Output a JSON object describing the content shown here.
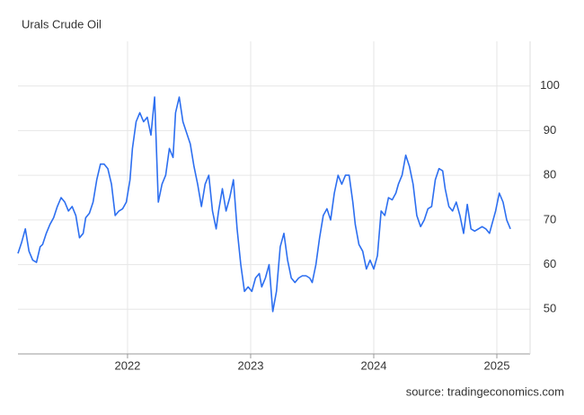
{
  "chart_data": {
    "type": "line",
    "title": "Urals Crude Oil",
    "source": "source: tradingeconomics.com",
    "x": [
      2021.11,
      2021.14,
      2021.17,
      2021.2,
      2021.23,
      2021.26,
      2021.29,
      2021.31,
      2021.34,
      2021.37,
      2021.4,
      2021.43,
      2021.46,
      2021.49,
      2021.52,
      2021.55,
      2021.58,
      2021.61,
      2021.64,
      2021.66,
      2021.69,
      2021.72,
      2021.75,
      2021.78,
      2021.81,
      2021.84,
      2021.87,
      2021.9,
      2021.93,
      2021.96,
      2021.99,
      2022.02,
      2022.04,
      2022.07,
      2022.1,
      2022.13,
      2022.16,
      2022.19,
      2022.22,
      2022.25,
      2022.28,
      2022.31,
      2022.34,
      2022.37,
      2022.39,
      2022.42,
      2022.45,
      2022.48,
      2022.51,
      2022.54,
      2022.57,
      2022.6,
      2022.63,
      2022.66,
      2022.69,
      2022.72,
      2022.74,
      2022.77,
      2022.8,
      2022.83,
      2022.86,
      2022.89,
      2022.92,
      2022.95,
      2022.98,
      2023.01,
      2023.04,
      2023.07,
      2023.09,
      2023.12,
      2023.15,
      2023.18,
      2023.21,
      2023.24,
      2023.27,
      2023.3,
      2023.33,
      2023.36,
      2023.39,
      2023.42,
      2023.45,
      2023.48,
      2023.5,
      2023.53,
      2023.56,
      2023.59,
      2023.62,
      2023.65,
      2023.68,
      2023.71,
      2023.74,
      2023.77,
      2023.8,
      2023.83,
      2023.85,
      2023.88,
      2023.91,
      2023.94,
      2023.97,
      2024.0,
      2024.03,
      2024.06,
      2024.09,
      2024.12,
      2024.15,
      2024.18,
      2024.2,
      2024.23,
      2024.26,
      2024.29,
      2024.32,
      2024.35,
      2024.38,
      2024.41,
      2024.44,
      2024.47,
      2024.5,
      2024.53,
      2024.56,
      2024.58,
      2024.61,
      2024.64,
      2024.67,
      2024.7,
      2024.73,
      2024.76,
      2024.79,
      2024.82,
      2024.85,
      2024.88,
      2024.91,
      2024.94,
      2024.96,
      2024.99,
      2025.02,
      2025.05,
      2025.08,
      2025.11
    ],
    "series": [
      {
        "color": "#2d6ff0",
        "values": [
          62.5,
          65,
          68,
          63,
          61,
          60.5,
          64,
          64.5,
          67,
          69,
          70.5,
          73,
          75,
          74,
          72,
          73,
          71,
          66,
          67,
          70.5,
          71.5,
          74,
          79,
          82.5,
          82.5,
          81.5,
          78,
          71,
          72,
          72.5,
          74,
          79,
          86,
          92,
          94,
          92,
          93,
          89,
          97.5,
          74,
          78,
          80,
          86,
          84,
          94,
          97.5,
          92,
          89.5,
          87,
          82,
          78,
          73,
          78,
          80,
          72,
          68,
          72,
          77,
          72,
          75,
          79,
          68,
          60,
          54,
          55,
          54,
          57,
          58,
          55,
          57,
          60,
          49.5,
          54,
          64,
          67,
          61,
          57,
          56,
          57,
          57.5,
          57.5,
          57,
          56,
          60,
          66,
          71,
          72.5,
          70,
          76,
          80,
          78,
          80,
          80,
          74,
          69,
          64.5,
          63,
          59,
          61,
          59,
          62,
          72,
          71,
          75,
          74.5,
          76,
          78,
          80,
          84.5,
          82,
          78,
          71,
          68.5,
          70,
          72.5,
          73,
          79,
          81.5,
          81,
          77,
          73,
          72,
          74,
          71,
          67,
          73.5,
          68,
          67.5,
          68,
          68.5,
          68,
          67,
          69,
          72,
          76,
          74,
          70,
          68
        ]
      }
    ],
    "xlim": [
      2021.11,
      2025.27
    ],
    "ylim": [
      40,
      110
    ],
    "xticks": [
      2022,
      2023,
      2024,
      2025
    ],
    "yticks": [
      50,
      60,
      70,
      80,
      90,
      100
    ],
    "grid": true
  }
}
